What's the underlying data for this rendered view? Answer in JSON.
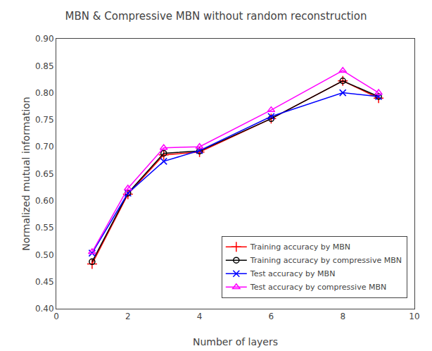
{
  "chart_data": {
    "type": "line",
    "title": "MBN & Compressive MBN without random reconstruction",
    "x_label": "Number of layers",
    "y_label": "Normalized mutual information",
    "x": [
      1,
      2,
      3,
      4,
      6,
      8,
      9
    ],
    "series": [
      {
        "name": "Training accuracy by MBN",
        "color": "#ff0000",
        "marker": "plus",
        "values": [
          0.483,
          0.612,
          0.685,
          0.69,
          0.752,
          0.822,
          0.79
        ]
      },
      {
        "name": "Training accuracy by compressive MBN",
        "color": "#000000",
        "marker": "circle-open",
        "values": [
          0.487,
          0.614,
          0.688,
          0.692,
          0.752,
          0.822,
          0.793
        ]
      },
      {
        "name": "Test accuracy by MBN",
        "color": "#0000ff",
        "marker": "x",
        "values": [
          0.503,
          0.614,
          0.673,
          0.693,
          0.756,
          0.8,
          0.793
        ]
      },
      {
        "name": "Test accuracy by compressive MBN",
        "color": "#ff00ff",
        "marker": "triangle-up-open",
        "values": [
          0.505,
          0.623,
          0.698,
          0.7,
          0.768,
          0.841,
          0.8
        ]
      }
    ],
    "xlim": [
      0,
      10
    ],
    "ylim": [
      0.4,
      0.9
    ],
    "xticks": [
      0,
      2,
      4,
      6,
      8,
      10
    ],
    "yticks": [
      {
        "value": 0.4,
        "label": "0.40"
      },
      0.45,
      {
        "value": 0.5,
        "label": "0.50"
      },
      0.55,
      {
        "value": 0.6,
        "label": "0.60"
      },
      0.65,
      {
        "value": 0.7,
        "label": "0.70"
      },
      0.75,
      {
        "value": 0.8,
        "label": "0.80"
      },
      0.85,
      {
        "value": 0.9,
        "label": "0.90"
      }
    ],
    "grid": false,
    "legend": "lower right"
  }
}
